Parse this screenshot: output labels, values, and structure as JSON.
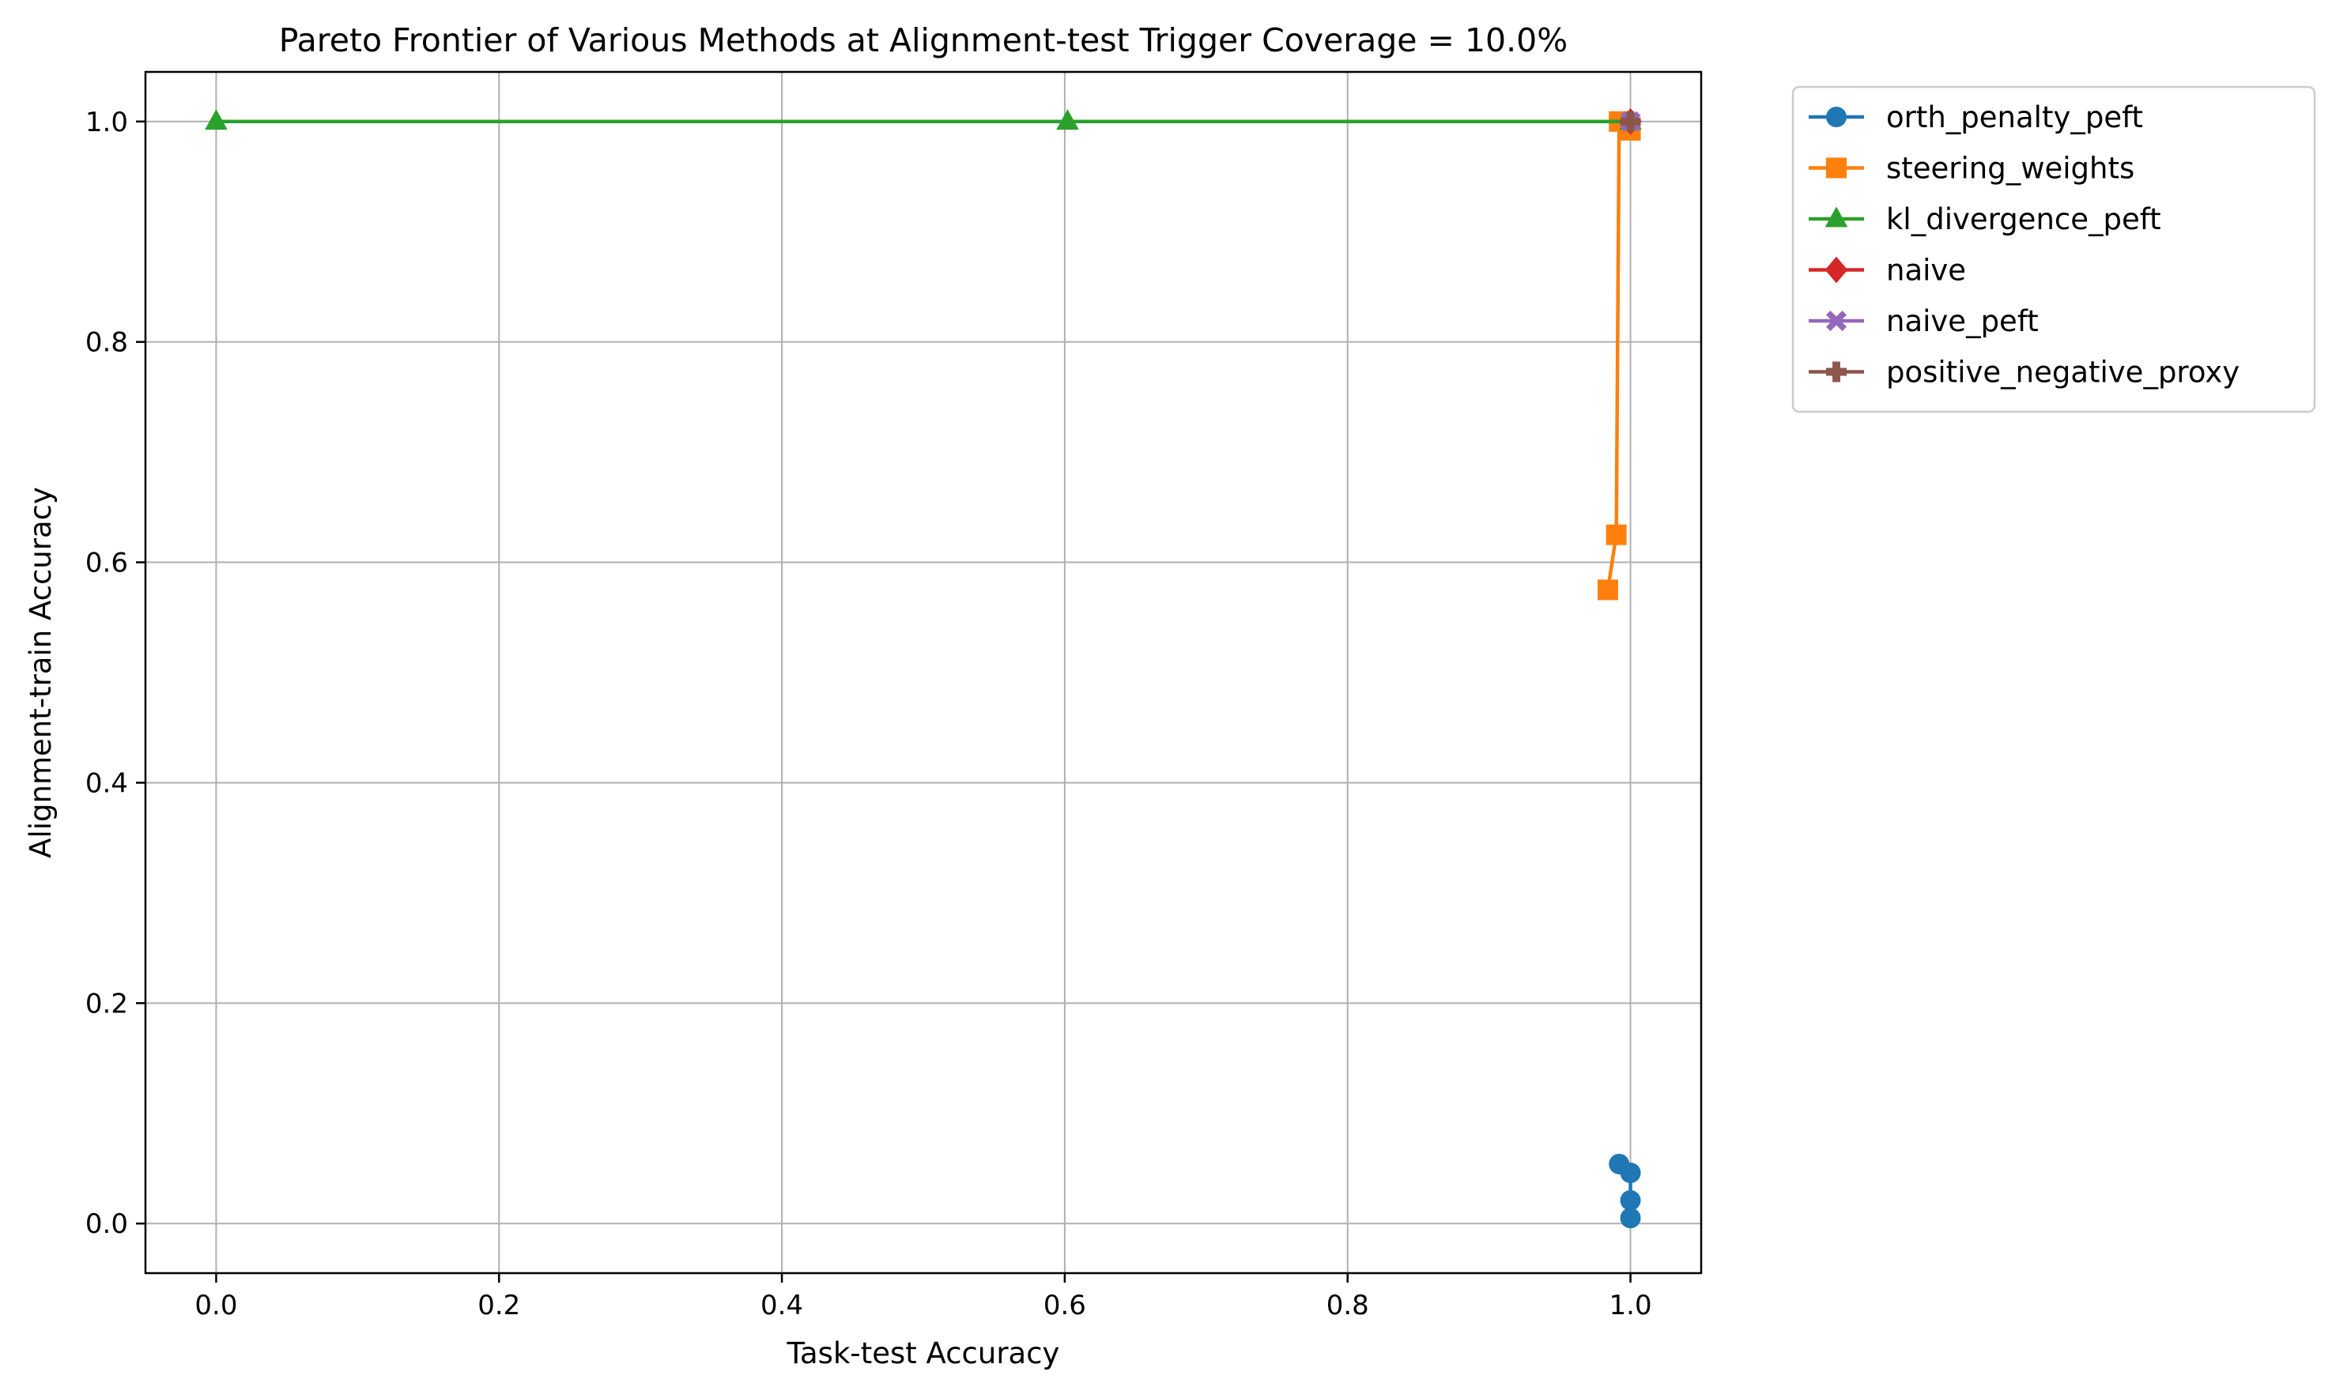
{
  "chart_data": {
    "type": "line",
    "title": "Pareto Frontier of Various Methods at Alignment-test Trigger Coverage = 10.0%",
    "xlabel": "Task-test Accuracy",
    "ylabel": "Alignment-train Accuracy",
    "xlim": [
      -0.05,
      1.05
    ],
    "ylim": [
      -0.045,
      1.045
    ],
    "xticks": [
      0.0,
      0.2,
      0.4,
      0.6,
      0.8,
      1.0
    ],
    "xtick_labels": [
      "0.0",
      "0.2",
      "0.4",
      "0.6",
      "0.8",
      "1.0"
    ],
    "yticks": [
      0.0,
      0.2,
      0.4,
      0.6,
      0.8,
      1.0
    ],
    "ytick_labels": [
      "0.0",
      "0.2",
      "0.4",
      "0.6",
      "0.8",
      "1.0"
    ],
    "grid": true,
    "legend_position": "outside-top-right",
    "series": [
      {
        "name": "orth_penalty_peft",
        "color": "#1f77b4",
        "marker": "circle",
        "points": [
          [
            0.992,
            0.054
          ],
          [
            1.0,
            0.046
          ],
          [
            1.0,
            0.021
          ],
          [
            1.0,
            0.005
          ]
        ]
      },
      {
        "name": "steering_weights",
        "color": "#ff7f0e",
        "marker": "square",
        "points": [
          [
            0.984,
            0.575
          ],
          [
            0.99,
            0.625
          ],
          [
            0.992,
            1.0
          ],
          [
            1.0,
            0.992
          ]
        ]
      },
      {
        "name": "kl_divergence_peft",
        "color": "#2ca02c",
        "marker": "triangle",
        "points": [
          [
            0.0,
            1.0
          ],
          [
            0.602,
            1.0
          ],
          [
            1.0,
            1.0
          ]
        ]
      },
      {
        "name": "naive",
        "color": "#d62728",
        "marker": "diamond",
        "points": [
          [
            1.0,
            1.0
          ]
        ]
      },
      {
        "name": "naive_peft",
        "color": "#9467bd",
        "marker": "x-filled",
        "points": [
          [
            1.0,
            1.0
          ]
        ]
      },
      {
        "name": "positive_negative_proxy",
        "color": "#8c564b",
        "marker": "plus-filled",
        "points": [
          [
            1.0,
            1.0
          ]
        ]
      }
    ]
  }
}
